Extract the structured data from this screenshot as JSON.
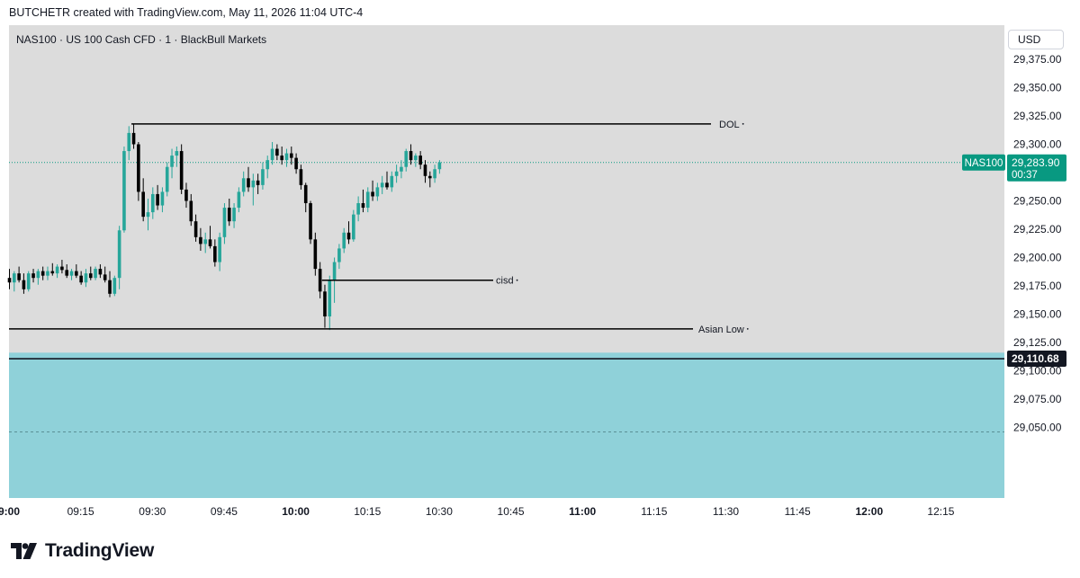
{
  "header": {
    "attribution": "BUTCHETR created with TradingView.com, May 11, 2026 11:04 UTC-4"
  },
  "symbol": {
    "info": "NAS100 · US 100 Cash CFD · 1 · BlackBull Markets"
  },
  "currency": {
    "label": "USD"
  },
  "brand": {
    "name": "TradingView"
  },
  "colors": {
    "up": "#26a69a",
    "down": "#000000",
    "plot_bg": "#dcdcdc",
    "zone": "#8fd1d9",
    "accent_teal": "#089981",
    "dark_label": "#131722"
  },
  "price_tag": {
    "symbol": "NAS100",
    "price": "29,283.90",
    "countdown": "00:37",
    "value": 29283.9
  },
  "level_tag": {
    "price": "29,110.68",
    "value": 29110.68
  },
  "chart_data": {
    "type": "candlestick",
    "title": "NAS100 · US 100 Cash CFD · 1 · BlackBull Markets",
    "y_axis": {
      "ticks": [
        {
          "value": 29375,
          "label": "29,375.00"
        },
        {
          "value": 29350,
          "label": "29,350.00"
        },
        {
          "value": 29325,
          "label": "29,325.00"
        },
        {
          "value": 29300,
          "label": "29,300.00"
        },
        {
          "value": 29250,
          "label": "29,250.00"
        },
        {
          "value": 29225,
          "label": "29,225.00"
        },
        {
          "value": 29200,
          "label": "29,200.00"
        },
        {
          "value": 29175,
          "label": "29,175.00"
        },
        {
          "value": 29150,
          "label": "29,150.00"
        },
        {
          "value": 29125,
          "label": "29,125.00"
        },
        {
          "value": 29100,
          "label": "29,100.00"
        },
        {
          "value": 29075,
          "label": "29,075.00"
        },
        {
          "value": 29050,
          "label": "29,050.00"
        }
      ]
    },
    "x_axis": {
      "ticks": [
        {
          "min": 0,
          "label": "9:00",
          "bold": true
        },
        {
          "min": 15,
          "label": "09:15",
          "bold": false
        },
        {
          "min": 30,
          "label": "09:30",
          "bold": false
        },
        {
          "min": 45,
          "label": "09:45",
          "bold": false
        },
        {
          "min": 60,
          "label": "10:00",
          "bold": true
        },
        {
          "min": 75,
          "label": "10:15",
          "bold": false
        },
        {
          "min": 90,
          "label": "10:30",
          "bold": false
        },
        {
          "min": 105,
          "label": "10:45",
          "bold": false
        },
        {
          "min": 120,
          "label": "11:00",
          "bold": true
        },
        {
          "min": 135,
          "label": "11:15",
          "bold": false
        },
        {
          "min": 150,
          "label": "11:30",
          "bold": false
        },
        {
          "min": 165,
          "label": "11:45",
          "bold": false
        },
        {
          "min": 180,
          "label": "12:00",
          "bold": true
        },
        {
          "min": 195,
          "label": "12:15",
          "bold": false
        }
      ]
    },
    "candles": [
      [
        29182,
        29190,
        29172,
        29178
      ],
      [
        29178,
        29188,
        29170,
        29186
      ],
      [
        29186,
        29192,
        29178,
        29180
      ],
      [
        29180,
        29186,
        29168,
        29172
      ],
      [
        29172,
        29188,
        29170,
        29186
      ],
      [
        29186,
        29190,
        29178,
        29182
      ],
      [
        29182,
        29190,
        29176,
        29188
      ],
      [
        29188,
        29192,
        29180,
        29184
      ],
      [
        29184,
        29192,
        29180,
        29188
      ],
      [
        29188,
        29195,
        29184,
        29186
      ],
      [
        29186,
        29194,
        29182,
        29192
      ],
      [
        29192,
        29198,
        29186,
        29189
      ],
      [
        29189,
        29194,
        29182,
        29184
      ],
      [
        29184,
        29190,
        29180,
        29188
      ],
      [
        29188,
        29194,
        29182,
        29184
      ],
      [
        29184,
        29188,
        29176,
        29178
      ],
      [
        29178,
        29190,
        29174,
        29186
      ],
      [
        29186,
        29192,
        29180,
        29182
      ],
      [
        29182,
        29192,
        29180,
        29190
      ],
      [
        29190,
        29194,
        29182,
        29185
      ],
      [
        29185,
        29192,
        29178,
        29180
      ],
      [
        29180,
        29188,
        29165,
        29168
      ],
      [
        29168,
        29184,
        29166,
        29182
      ],
      [
        29182,
        29228,
        29172,
        29224
      ],
      [
        29224,
        29298,
        29222,
        29294
      ],
      [
        29294,
        29316,
        29286,
        29310
      ],
      [
        29310,
        29318,
        29296,
        29300
      ],
      [
        29300,
        29302,
        29250,
        29258
      ],
      [
        29258,
        29270,
        29232,
        29236
      ],
      [
        29236,
        29252,
        29224,
        29240
      ],
      [
        29240,
        29262,
        29234,
        29256
      ],
      [
        29256,
        29264,
        29242,
        29246
      ],
      [
        29246,
        29262,
        29240,
        29258
      ],
      [
        29258,
        29284,
        29254,
        29280
      ],
      [
        29280,
        29296,
        29270,
        29290
      ],
      [
        29290,
        29298,
        29280,
        29294
      ],
      [
        29294,
        29300,
        29256,
        29260
      ],
      [
        29260,
        29266,
        29244,
        29250
      ],
      [
        29250,
        29256,
        29228,
        29232
      ],
      [
        29232,
        29238,
        29214,
        29218
      ],
      [
        29218,
        29226,
        29206,
        29212
      ],
      [
        29212,
        29222,
        29204,
        29216
      ],
      [
        29216,
        29228,
        29208,
        29210
      ],
      [
        29210,
        29216,
        29192,
        29196
      ],
      [
        29196,
        29222,
        29188,
        29218
      ],
      [
        29218,
        29248,
        29212,
        29244
      ],
      [
        29244,
        29252,
        29228,
        29232
      ],
      [
        29232,
        29248,
        29226,
        29244
      ],
      [
        29244,
        29262,
        29240,
        29258
      ],
      [
        29258,
        29276,
        29254,
        29270
      ],
      [
        29270,
        29280,
        29258,
        29262
      ],
      [
        29262,
        29274,
        29246,
        29268
      ],
      [
        29268,
        29274,
        29256,
        29264
      ],
      [
        29264,
        29284,
        29260,
        29278
      ],
      [
        29278,
        29290,
        29270,
        29286
      ],
      [
        29286,
        29302,
        29282,
        29296
      ],
      [
        29296,
        29300,
        29286,
        29290
      ],
      [
        29290,
        29298,
        29282,
        29286
      ],
      [
        29286,
        29296,
        29280,
        29292
      ],
      [
        29292,
        29298,
        29282,
        29288
      ],
      [
        29288,
        29292,
        29274,
        29278
      ],
      [
        29278,
        29282,
        29260,
        29264
      ],
      [
        29264,
        29266,
        29240,
        29248
      ],
      [
        29248,
        29250,
        29212,
        29216
      ],
      [
        29216,
        29222,
        29184,
        29190
      ],
      [
        29190,
        29196,
        29164,
        29170
      ],
      [
        29170,
        29176,
        29138,
        29148
      ],
      [
        29148,
        29184,
        29136,
        29180
      ],
      [
        29180,
        29200,
        29160,
        29196
      ],
      [
        29196,
        29212,
        29190,
        29208
      ],
      [
        29208,
        29226,
        29204,
        29222
      ],
      [
        29222,
        29232,
        29212,
        29216
      ],
      [
        29216,
        29242,
        29214,
        29238
      ],
      [
        29238,
        29254,
        29232,
        29248
      ],
      [
        29248,
        29260,
        29240,
        29244
      ],
      [
        29244,
        29262,
        29240,
        29258
      ],
      [
        29258,
        29268,
        29250,
        29254
      ],
      [
        29254,
        29266,
        29250,
        29262
      ],
      [
        29262,
        29272,
        29256,
        29266
      ],
      [
        29266,
        29276,
        29260,
        29262
      ],
      [
        29262,
        29276,
        29258,
        29272
      ],
      [
        29272,
        29282,
        29266,
        29276
      ],
      [
        29276,
        29286,
        29270,
        29280
      ],
      [
        29280,
        29296,
        29276,
        29294
      ],
      [
        29294,
        29300,
        29282,
        29286
      ],
      [
        29286,
        29292,
        29280,
        29290
      ],
      [
        29290,
        29294,
        29278,
        29282
      ],
      [
        29282,
        29286,
        29266,
        29272
      ],
      [
        29272,
        29276,
        29262,
        29270
      ],
      [
        29270,
        29282,
        29266,
        29278
      ],
      [
        29278,
        29286,
        29274,
        29284
      ]
    ],
    "annotations": [
      {
        "label": "DOL",
        "price": 29318
      },
      {
        "label": "cisd",
        "price": 29180
      },
      {
        "label": "Asian Low",
        "price": 29137
      }
    ],
    "zone": {
      "top": 29116,
      "bottom": 29040,
      "dashed_line": 29046
    },
    "last_price_line": 29283.9,
    "level_line": 29110.68
  }
}
